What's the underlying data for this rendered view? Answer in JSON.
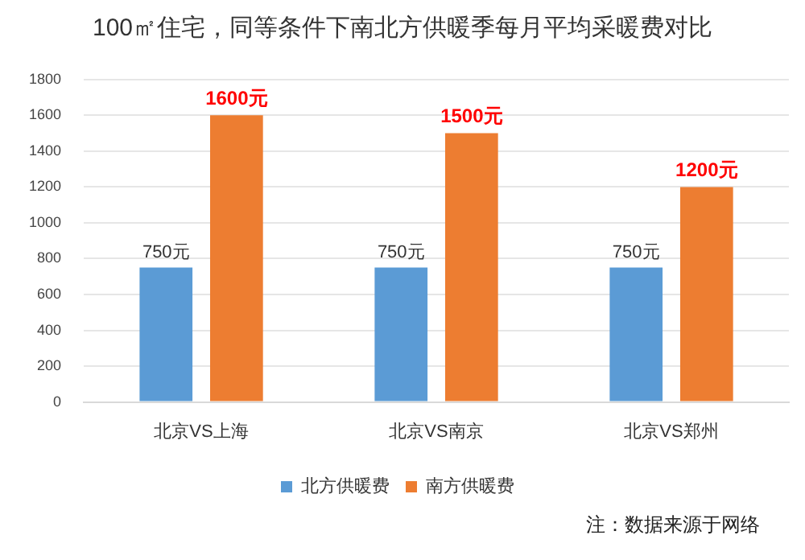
{
  "chart_data": {
    "type": "bar",
    "title": "100㎡住宅，同等条件下南北方供暖季每月平均采暖费对比",
    "categories": [
      "北京VS上海",
      "北京VS南京",
      "北京VS郑州"
    ],
    "series": [
      {
        "name": "北方供暖费",
        "color": "#5b9bd5",
        "values": [
          750,
          750,
          750
        ],
        "value_labels": [
          "750元",
          "750元",
          "750元"
        ]
      },
      {
        "name": "南方供暖费",
        "color": "#ed7d31",
        "values": [
          1600,
          1500,
          1200
        ],
        "value_labels": [
          "1600元",
          "1500元",
          "1200元"
        ]
      }
    ],
    "ylim": [
      0,
      1800
    ],
    "yticks": [
      0,
      200,
      400,
      600,
      800,
      1000,
      1200,
      1400,
      1600,
      1800
    ],
    "grid": "y",
    "legend": "bottom",
    "annotations": [
      "注：数据来源于网络"
    ]
  }
}
